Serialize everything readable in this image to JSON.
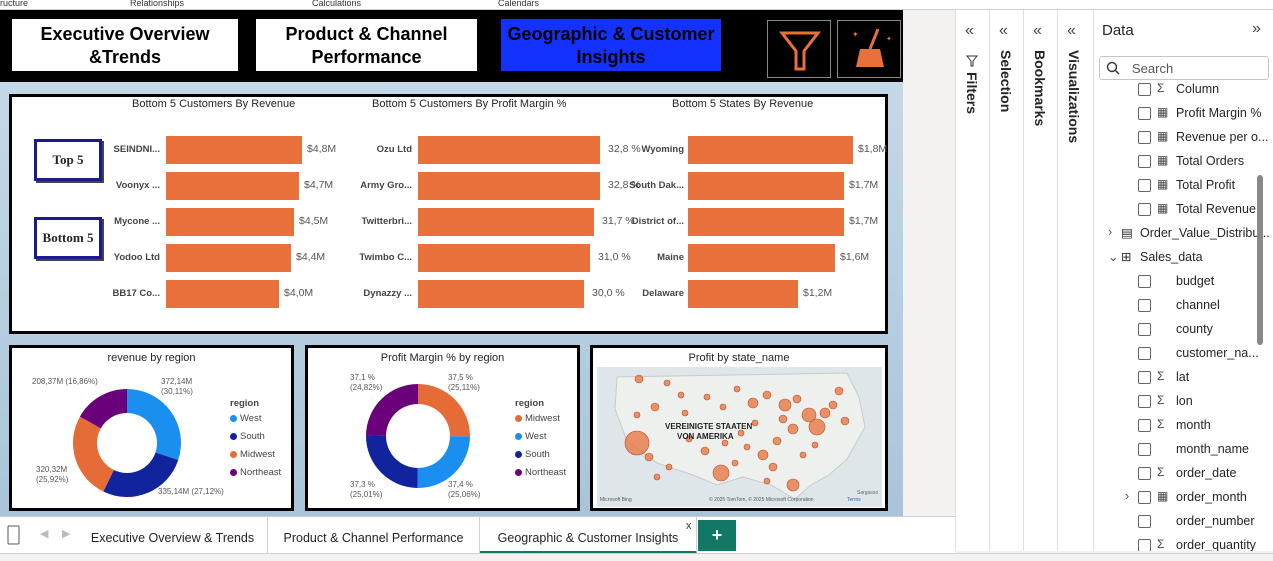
{
  "ribbon": {
    "items": [
      "ructure",
      "Relationships",
      "Calculations",
      "Calendars"
    ]
  },
  "nav": {
    "btn1": "Executive Overview &Trends",
    "btn2": "Product & Channel Performance",
    "btn3": "Geographic & Customer Insights"
  },
  "toggles": {
    "top": "Top 5",
    "bottom": "Bottom 5"
  },
  "bar_charts": [
    {
      "title": "Bottom 5 Customers By Revenue",
      "categories": [
        "SEINDNI...",
        "Voonyx ...",
        "Mycone ...",
        "Yodoo Ltd",
        "BB17 Co..."
      ],
      "values": [
        4.8,
        4.7,
        4.5,
        4.4,
        4.0
      ],
      "labels": [
        "$4,8M",
        "$4,7M",
        "$4,5M",
        "$4,4M",
        "$4,0M"
      ],
      "max": 4.8
    },
    {
      "title": "Bottom 5 Customers By Profit Margin %",
      "categories": [
        "Ozu Ltd",
        "Army Gro...",
        "Twitterbri...",
        "Twimbo C...",
        "Dynazzy ..."
      ],
      "values": [
        32.8,
        32.8,
        31.7,
        31.0,
        30.0
      ],
      "labels": [
        "32,8 %",
        "32,8 %",
        "31,7 %",
        "31,0 %",
        "30,0 %"
      ],
      "max": 32.8
    },
    {
      "title": "Bottom 5 States By Revenue",
      "categories": [
        "Wyoming",
        "South Dak...",
        "District of...",
        "Maine",
        "Delaware"
      ],
      "values": [
        1.8,
        1.7,
        1.7,
        1.6,
        1.2
      ],
      "labels": [
        "$1,8M",
        "$1,7M",
        "$1,7M",
        "$1,6M",
        "$1,2M"
      ],
      "max": 1.8
    }
  ],
  "donut1": {
    "title": "revenue by region",
    "legend_title": "region",
    "legend": [
      {
        "name": "West",
        "color": "#1a8ff0"
      },
      {
        "name": "South",
        "color": "#12239e"
      },
      {
        "name": "Midwest",
        "color": "#e66c37"
      },
      {
        "name": "Northeast",
        "color": "#6b007b"
      }
    ],
    "slices": [
      {
        "name": "West",
        "value": 372.14,
        "color": "#1a8ff0"
      },
      {
        "name": "South",
        "value": 335.14,
        "color": "#12239e"
      },
      {
        "name": "Midwest",
        "value": 320.32,
        "color": "#e66c37"
      },
      {
        "name": "Northeast",
        "value": 208.37,
        "color": "#6b007b"
      }
    ],
    "l1a": "372,14M",
    "l1b": "(30,11%)",
    "l2": "335,14M (27,12%)",
    "l3a": "320,32M",
    "l3b": "(25,92%)",
    "l4": "208,37M (16,86%)"
  },
  "donut2": {
    "title": "Profit Margin % by region",
    "legend_title": "region",
    "legend": [
      {
        "name": "Midwest",
        "color": "#e66c37"
      },
      {
        "name": "West",
        "color": "#1a8ff0"
      },
      {
        "name": "South",
        "color": "#12239e"
      },
      {
        "name": "Northeast",
        "color": "#6b007b"
      }
    ],
    "slices": [
      {
        "name": "Midwest",
        "value": 25.11,
        "color": "#e66c37"
      },
      {
        "name": "West",
        "value": 25.06,
        "color": "#1a8ff0"
      },
      {
        "name": "South",
        "value": 25.01,
        "color": "#12239e"
      },
      {
        "name": "Northeast",
        "value": 24.82,
        "color": "#6b007b"
      }
    ],
    "l1a": "37,5 %",
    "l1b": "(25,11%)",
    "l2a": "37,4 %",
    "l2b": "(25,06%)",
    "l3a": "37,3 %",
    "l3b": "(25,01%)",
    "l4a": "37,1 %",
    "l4b": "(24,82%)"
  },
  "map": {
    "title": "Profit by state_name",
    "country_label_1": "VEREINIGTE STAATEN",
    "country_label_2": "VON AMERIKA",
    "attribution": "© 2025 TomTom, © 2025 Microsoft Corporation",
    "terms": "Terms",
    "brand": "Microsoft Bing",
    "corner": "Sargasso"
  },
  "panes": {
    "filters": "Filters",
    "selection": "Selection",
    "bookmarks": "Bookmarks",
    "visualizations": "Visualizations"
  },
  "data_pane": {
    "title": "Data",
    "search_placeholder": "Search",
    "fields": [
      {
        "icon": "Σ",
        "name": "Column",
        "check": true,
        "indent": 0
      },
      {
        "icon": "▦",
        "name": "Profit Margin %",
        "check": true,
        "indent": 0
      },
      {
        "icon": "▦",
        "name": "Revenue per o...",
        "check": true,
        "indent": 0
      },
      {
        "icon": "▦",
        "name": "Total Orders",
        "check": true,
        "indent": 0
      },
      {
        "icon": "▦",
        "name": "Total Profit",
        "check": true,
        "indent": 0
      },
      {
        "icon": "▦",
        "name": "Total Revenue",
        "check": true,
        "indent": 0
      },
      {
        "icon": "▤",
        "name": "Order_Value_Distribu...",
        "check": false,
        "indent": 1,
        "chev": "›"
      },
      {
        "icon": "⊞",
        "name": "Sales_data",
        "check": false,
        "indent": 1,
        "chev": "⌄"
      },
      {
        "icon": "",
        "name": "budget",
        "check": true,
        "indent": 0
      },
      {
        "icon": "",
        "name": "channel",
        "check": true,
        "indent": 0
      },
      {
        "icon": "",
        "name": "county",
        "check": true,
        "indent": 0
      },
      {
        "icon": "",
        "name": "customer_na...",
        "check": true,
        "indent": 0
      },
      {
        "icon": "Σ",
        "name": "lat",
        "check": true,
        "indent": 0
      },
      {
        "icon": "Σ",
        "name": "lon",
        "check": true,
        "indent": 0
      },
      {
        "icon": "Σ",
        "name": "month",
        "check": true,
        "indent": 0
      },
      {
        "icon": "",
        "name": "month_name",
        "check": true,
        "indent": 0
      },
      {
        "icon": "Σ",
        "name": "order_date",
        "check": true,
        "indent": 0
      },
      {
        "icon": "▦",
        "name": "order_month",
        "check": true,
        "indent": 0,
        "chev": "›"
      },
      {
        "icon": "",
        "name": "order_number",
        "check": true,
        "indent": 0
      },
      {
        "icon": "Σ",
        "name": "order_quantity",
        "check": true,
        "indent": 0
      }
    ]
  },
  "tabs": [
    {
      "label": "Executive Overview & Trends"
    },
    {
      "label": "Product & Channel Performance"
    },
    {
      "label": "Geographic & Customer Insights",
      "active": true
    }
  ],
  "tab_close": "x",
  "tab_add": "+"
}
